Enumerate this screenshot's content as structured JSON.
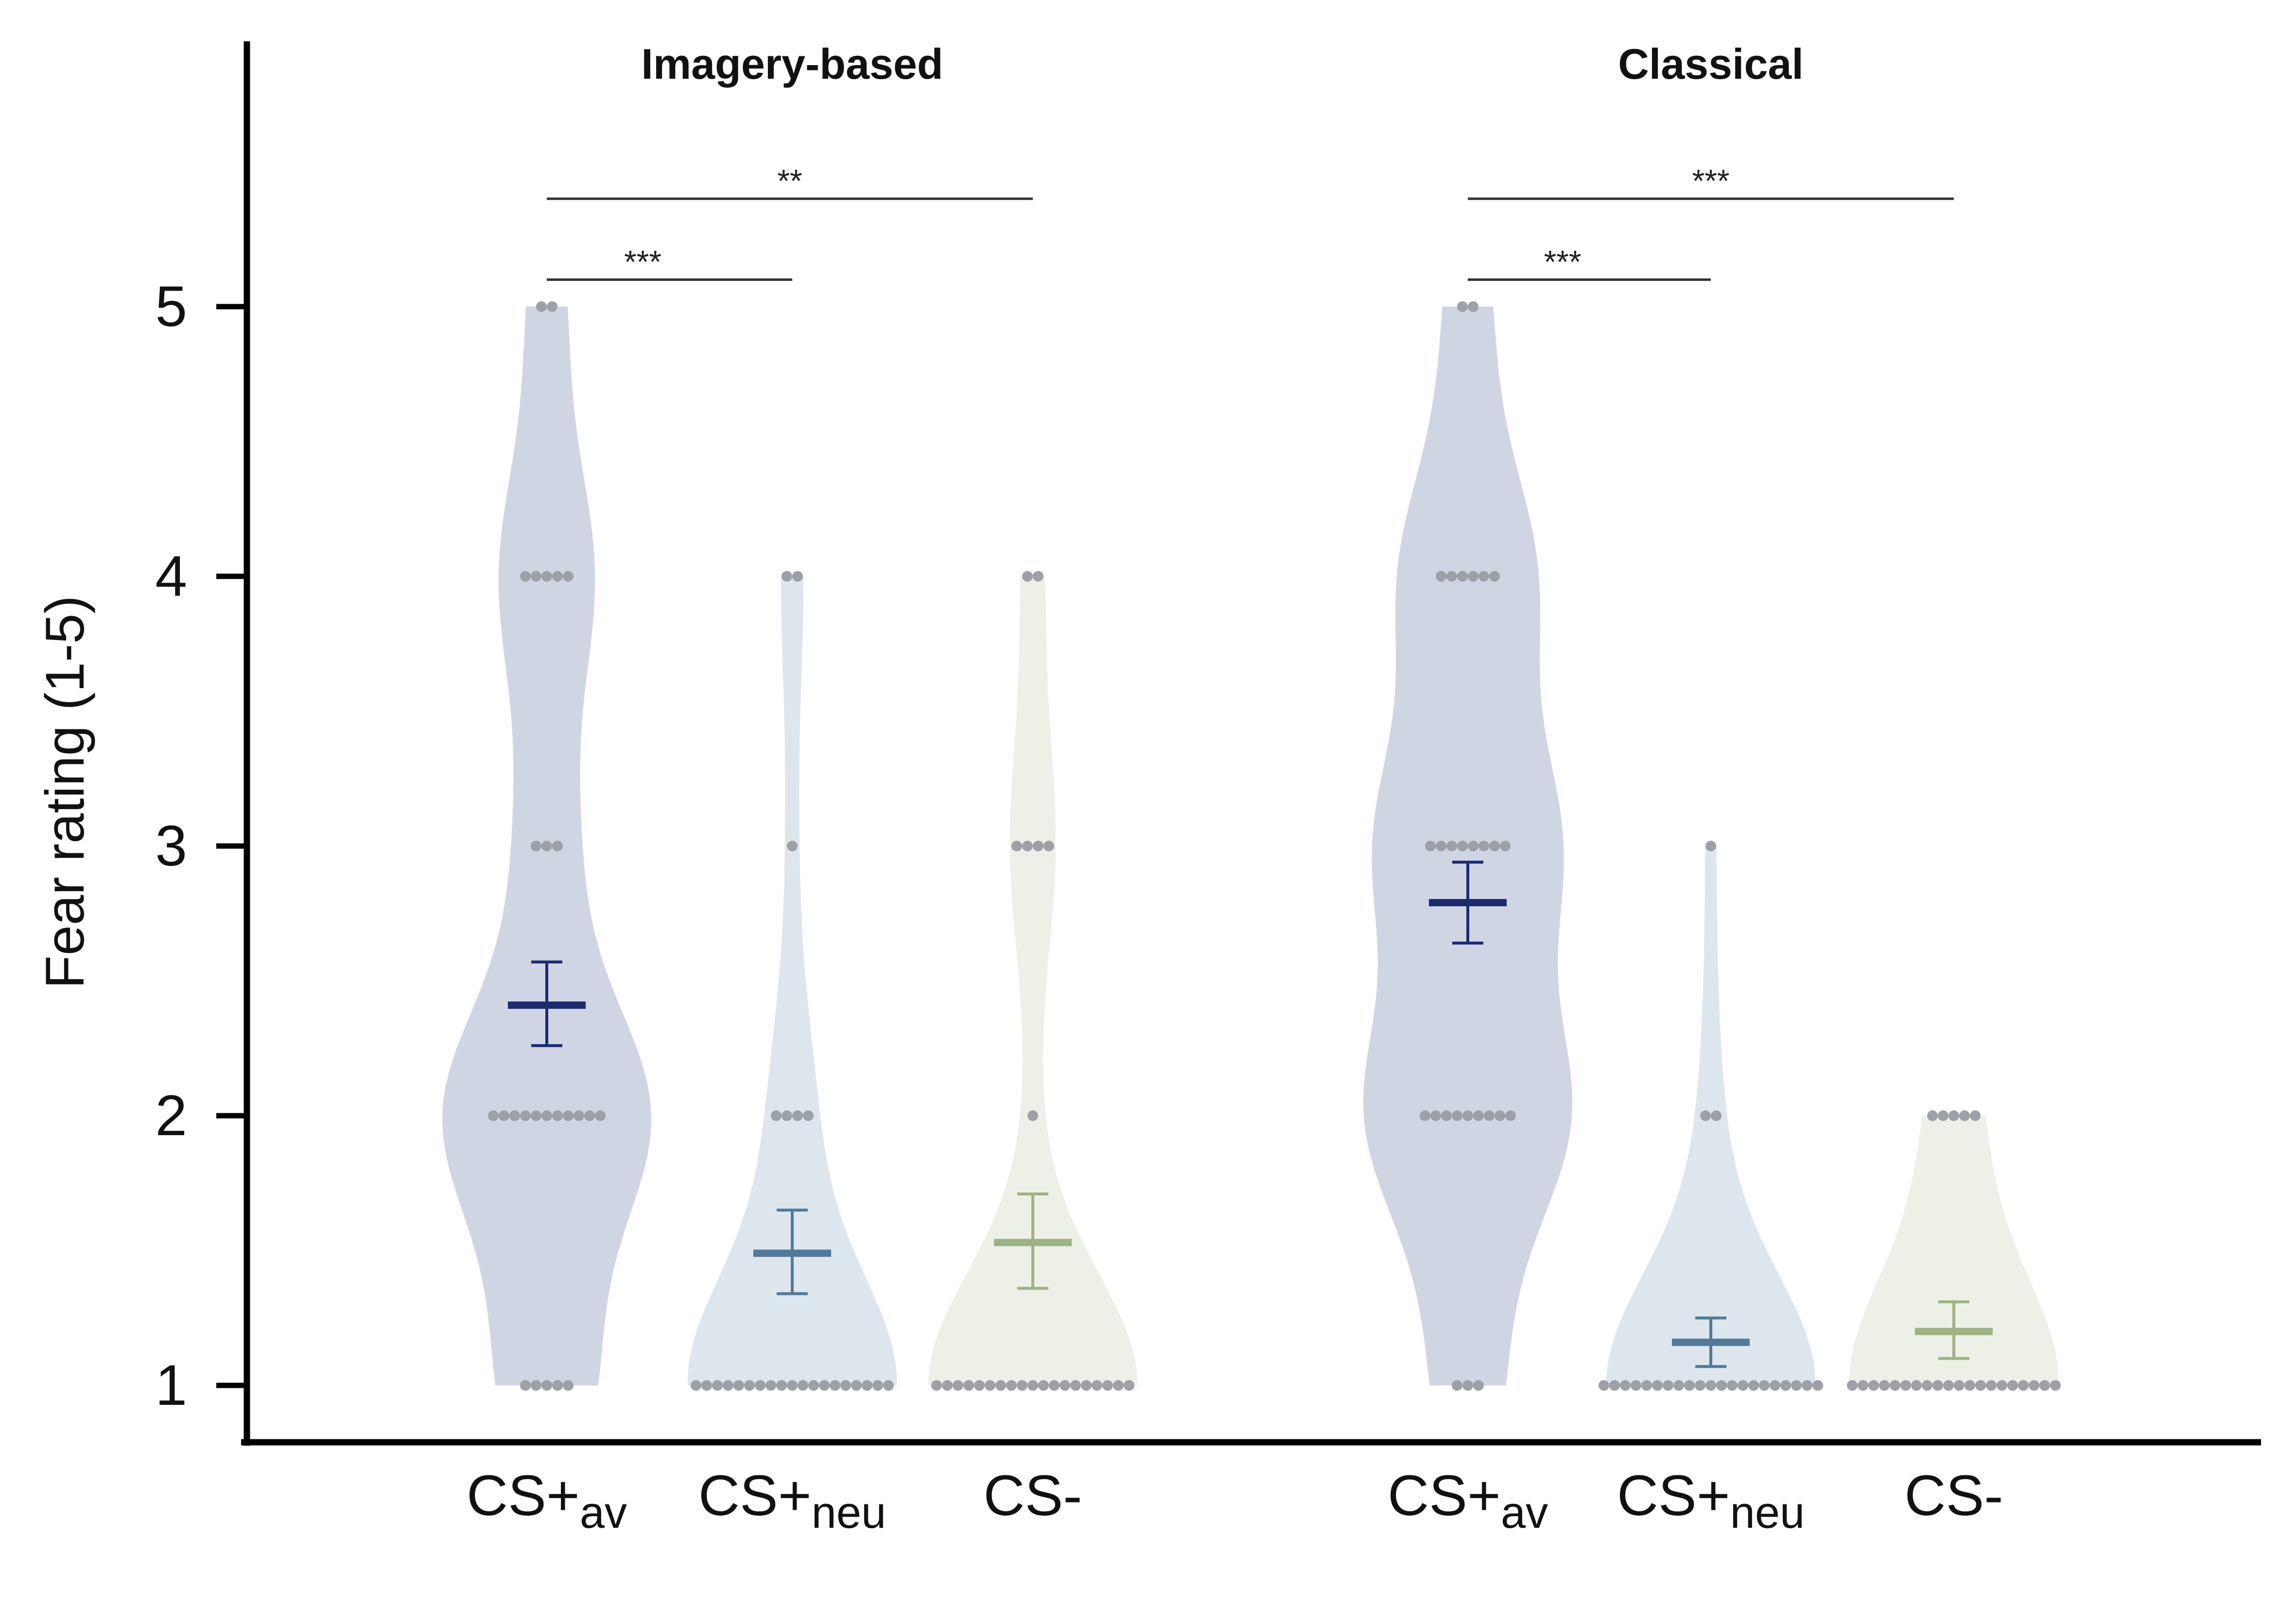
{
  "chart_data": {
    "type": "violin",
    "ylabel": "Fear rating (1-5)",
    "yticks": [
      1,
      2,
      3,
      4,
      5
    ],
    "ylim": [
      0.8,
      6.0
    ],
    "grid": false,
    "groups": [
      {
        "title": "Imagery-based",
        "conditions": [
          {
            "label": "CS+",
            "sub": "av",
            "color": "#1a2c6e",
            "fill": "#cfd5e3",
            "mean": 2.41,
            "error": [
              2.26,
              2.57
            ],
            "counts": {
              "1": 5,
              "2": 11,
              "3": 3,
              "4": 5,
              "5": 2
            }
          },
          {
            "label": "CS+",
            "sub": "neu",
            "color": "#52789a",
            "fill": "#dde5ed",
            "mean": 1.49,
            "error": [
              1.34,
              1.65
            ],
            "counts": {
              "1": 19,
              "2": 4,
              "3": 1,
              "4": 2
            }
          },
          {
            "label": "CS-",
            "sub": "",
            "color": "#9db383",
            "fill": "#edf0e6",
            "mean": 1.53,
            "error": [
              1.36,
              1.71
            ],
            "counts": {
              "1": 19,
              "2": 1,
              "3": 4,
              "4": 2
            }
          }
        ],
        "significance": [
          {
            "from": 0,
            "to": 1,
            "y": 5.1,
            "label": "***"
          },
          {
            "from": 0,
            "to": 2,
            "y": 5.4,
            "label": "**"
          }
        ]
      },
      {
        "title": "Classical",
        "conditions": [
          {
            "label": "CS+",
            "sub": "av",
            "color": "#1a2c6e",
            "fill": "#cfd5e3",
            "mean": 2.79,
            "error": [
              2.64,
              2.94
            ],
            "counts": {
              "1": 3,
              "2": 9,
              "3": 8,
              "4": 6,
              "5": 2
            }
          },
          {
            "label": "CS+",
            "sub": "neu",
            "color": "#52789a",
            "fill": "#dde5ed",
            "mean": 1.16,
            "error": [
              1.07,
              1.25
            ],
            "counts": {
              "1": 21,
              "2": 2,
              "3": 1
            }
          },
          {
            "label": "CS-",
            "sub": "",
            "color": "#9db383",
            "fill": "#edf0e6",
            "mean": 1.2,
            "error": [
              1.1,
              1.31
            ],
            "counts": {
              "1": 20,
              "2": 5
            }
          }
        ],
        "significance": [
          {
            "from": 0,
            "to": 1,
            "y": 5.1,
            "label": "***"
          },
          {
            "from": 0,
            "to": 2,
            "y": 5.4,
            "label": "***"
          }
        ]
      }
    ],
    "point_color": "#9ea0a8",
    "axis_color": "#000000"
  }
}
